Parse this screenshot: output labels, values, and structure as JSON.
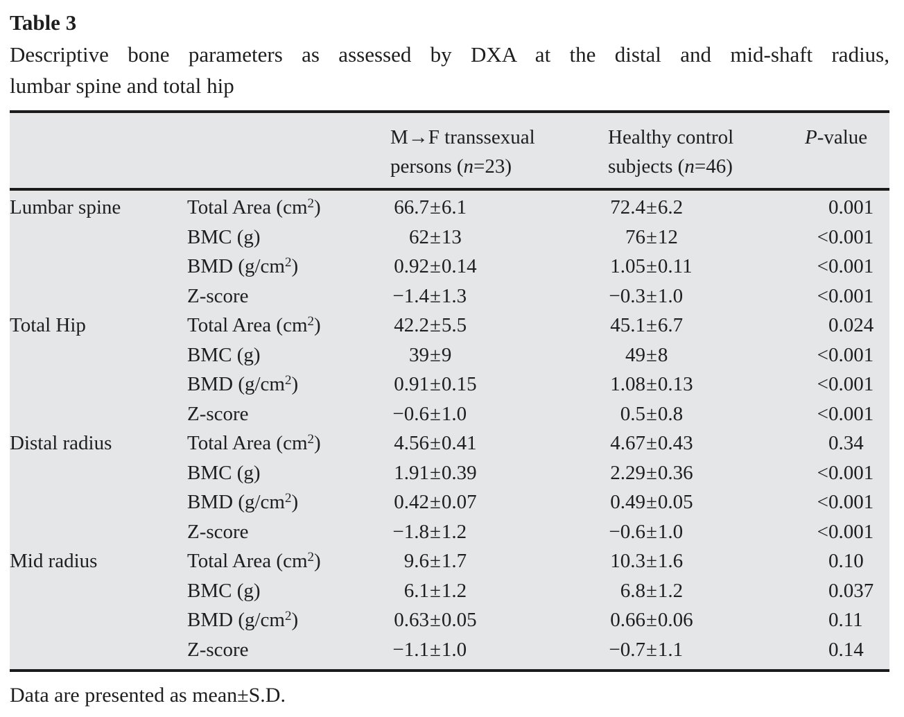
{
  "title": "Table 3",
  "caption_line1": "Descriptive bone parameters as assessed by DXA at the distal and mid-shaft radius,",
  "caption_line2": "lumbar spine and total hip",
  "symbols": {
    "pm": "±"
  },
  "header": {
    "col3_line1": "M→F transsexual",
    "col3_line2a": "persons (",
    "col3_line2b": "n",
    "col3_line2c": "=23)",
    "col4_line1": "Healthy control",
    "col4_line2a": "subjects (",
    "col4_line2b": "n",
    "col4_line2c": "=46)",
    "col5_a": "P",
    "col5_b": "-value"
  },
  "rows": [
    {
      "group": "Lumbar spine",
      "param_a": "Total Area (cm",
      "param_sup": "2",
      "param_b": ")",
      "v1_left": "66.7",
      "v1_right": "6.1",
      "v2_left": "72.4",
      "v2_right": "6.2",
      "p_prefix": "",
      "p_value": "0.001"
    },
    {
      "group": "",
      "param_a": "BMC (g)",
      "param_sup": "",
      "param_b": "",
      "v1_left": "62",
      "v1_right": "13",
      "v2_left": "76",
      "v2_right": "12",
      "p_prefix": "<",
      "p_value": "0.001"
    },
    {
      "group": "",
      "param_a": "BMD (g/cm",
      "param_sup": "2",
      "param_b": ")",
      "v1_left": "0.92",
      "v1_right": "0.14",
      "v2_left": "1.05",
      "v2_right": "0.11",
      "p_prefix": "<",
      "p_value": "0.001"
    },
    {
      "group": "",
      "param_a": "Z-score",
      "param_sup": "",
      "param_b": "",
      "v1_left": "−1.4",
      "v1_right": "1.3",
      "v2_left": "−0.3",
      "v2_right": "1.0",
      "p_prefix": "<",
      "p_value": "0.001"
    },
    {
      "group": "Total Hip",
      "param_a": "Total Area (cm",
      "param_sup": "2",
      "param_b": ")",
      "v1_left": "42.2",
      "v1_right": "5.5",
      "v2_left": "45.1",
      "v2_right": "6.7",
      "p_prefix": "",
      "p_value": "0.024"
    },
    {
      "group": "",
      "param_a": "BMC (g)",
      "param_sup": "",
      "param_b": "",
      "v1_left": "39",
      "v1_right": "9",
      "v2_left": "49",
      "v2_right": "8",
      "p_prefix": "<",
      "p_value": "0.001"
    },
    {
      "group": "",
      "param_a": "BMD (g/cm",
      "param_sup": "2",
      "param_b": ")",
      "v1_left": "0.91",
      "v1_right": "0.15",
      "v2_left": "1.08",
      "v2_right": "0.13",
      "p_prefix": "<",
      "p_value": "0.001"
    },
    {
      "group": "",
      "param_a": "Z-score",
      "param_sup": "",
      "param_b": "",
      "v1_left": "−0.6",
      "v1_right": "1.0",
      "v2_left": "0.5",
      "v2_right": "0.8",
      "p_prefix": "<",
      "p_value": "0.001"
    },
    {
      "group": "Distal radius",
      "param_a": "Total Area (cm",
      "param_sup": "2",
      "param_b": ")",
      "v1_left": "4.56",
      "v1_right": "0.41",
      "v2_left": "4.67",
      "v2_right": "0.43",
      "p_prefix": "",
      "p_value": "0.34"
    },
    {
      "group": "",
      "param_a": "BMC (g)",
      "param_sup": "",
      "param_b": "",
      "v1_left": "1.91",
      "v1_right": "0.39",
      "v2_left": "2.29",
      "v2_right": "0.36",
      "p_prefix": "<",
      "p_value": "0.001"
    },
    {
      "group": "",
      "param_a": "BMD (g/cm",
      "param_sup": "2",
      "param_b": ")",
      "v1_left": "0.42",
      "v1_right": "0.07",
      "v2_left": "0.49",
      "v2_right": "0.05",
      "p_prefix": "<",
      "p_value": "0.001"
    },
    {
      "group": "",
      "param_a": "Z-score",
      "param_sup": "",
      "param_b": "",
      "v1_left": "−1.8",
      "v1_right": "1.2",
      "v2_left": "−0.6",
      "v2_right": "1.0",
      "p_prefix": "<",
      "p_value": "0.001"
    },
    {
      "group": "Mid radius",
      "param_a": "Total Area (cm",
      "param_sup": "2",
      "param_b": ")",
      "v1_left": "9.6",
      "v1_right": "1.7",
      "v2_left": "10.3",
      "v2_right": "1.6",
      "p_prefix": "",
      "p_value": "0.10"
    },
    {
      "group": "",
      "param_a": "BMC (g)",
      "param_sup": "",
      "param_b": "",
      "v1_left": "6.1",
      "v1_right": "1.2",
      "v2_left": "6.8",
      "v2_right": "1.2",
      "p_prefix": "",
      "p_value": "0.037"
    },
    {
      "group": "",
      "param_a": "BMD (g/cm",
      "param_sup": "2",
      "param_b": ")",
      "v1_left": "0.63",
      "v1_right": "0.05",
      "v2_left": "0.66",
      "v2_right": "0.06",
      "p_prefix": "",
      "p_value": "0.11"
    },
    {
      "group": "",
      "param_a": "Z-score",
      "param_sup": "",
      "param_b": "",
      "v1_left": "−1.1",
      "v1_right": "1.0",
      "v2_left": "−0.7",
      "v2_right": "1.1",
      "p_prefix": "",
      "p_value": "0.14"
    }
  ],
  "footnote": "Data are presented as mean±S.D."
}
